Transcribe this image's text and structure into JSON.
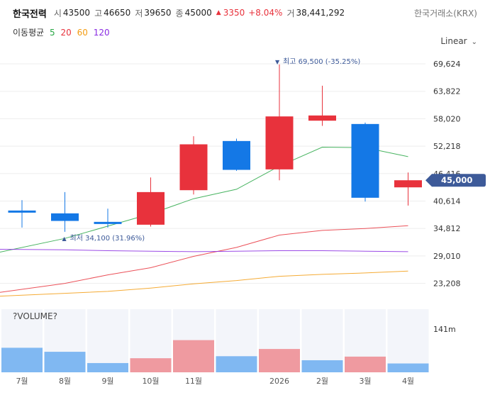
{
  "header": {
    "name": "한국전력",
    "open_label": "시",
    "open": "43500",
    "high_label": "고",
    "high": "46650",
    "low_label": "저",
    "low": "39650",
    "close_label": "종",
    "close": "45000",
    "change_arrow": "▲",
    "change": "3350",
    "change_pct": "+8.04%",
    "volume_label": "거",
    "volume": "38,441,292",
    "exchange": "한국거래소(KRX)"
  },
  "ma_legend": {
    "label": "이동평균",
    "periods": [
      "5",
      "20",
      "60",
      "120"
    ]
  },
  "scale": {
    "label": "Linear",
    "chevron_icon": "chevron-down-icon"
  },
  "colors": {
    "up": "#e8323c",
    "down": "#1478e6",
    "ma5": "#28a745",
    "ma20": "#e8323c",
    "ma60": "#f39c12",
    "ma120": "#8a2be2",
    "price_tag_bg": "#3d5a99"
  },
  "chart_data": {
    "type": "candlestick",
    "title": "한국전력",
    "y_scale": "linear",
    "ylim": [
      21000,
      74000
    ],
    "y_ticks": [
      "69,624",
      "63,822",
      "58,020",
      "52,218",
      "46,416",
      "40,614",
      "34,812",
      "29,010",
      "23,208"
    ],
    "y_tick_values": [
      69624,
      63822,
      58020,
      52218,
      46416,
      40614,
      34812,
      29010,
      23208
    ],
    "x_labels": [
      "7월",
      "8월",
      "9월",
      "10월",
      "11월",
      "2026",
      "2월",
      "3월",
      "4월"
    ],
    "candles": [
      {
        "open": 38600,
        "high": 40800,
        "low": 35000,
        "close": 38300
      },
      {
        "open": 38000,
        "high": 42500,
        "low": 34100,
        "close": 36400
      },
      {
        "open": 36200,
        "high": 39000,
        "low": 35000,
        "close": 35800
      },
      {
        "open": 35600,
        "high": 45600,
        "low": 35200,
        "close": 42500
      },
      {
        "open": 42900,
        "high": 54300,
        "low": 42000,
        "close": 52600
      },
      {
        "open": 53300,
        "high": 53800,
        "low": 47000,
        "close": 47200
      },
      {
        "open": 47300,
        "high": 69500,
        "low": 45000,
        "close": 58500
      },
      {
        "open": 57600,
        "high": 65000,
        "low": 56500,
        "close": 58700
      },
      {
        "open": 56900,
        "high": 57200,
        "low": 40500,
        "close": 41300
      },
      {
        "open": 43500,
        "high": 46650,
        "low": 39650,
        "close": 45000
      }
    ],
    "ma": [
      {
        "name": "5",
        "values": [
          29800,
          32700,
          35300,
          37900,
          41100,
          43100,
          48000,
          52000,
          51900,
          50000
        ]
      },
      {
        "name": "20",
        "values": [
          21300,
          23200,
          25000,
          26500,
          28900,
          30800,
          33400,
          34400,
          34800,
          35400
        ]
      },
      {
        "name": "60",
        "values": [
          20500,
          21100,
          21500,
          22200,
          23100,
          23800,
          24700,
          25100,
          25400,
          25800
        ]
      },
      {
        "name": "120",
        "values": [
          30400,
          30300,
          30100,
          30000,
          29900,
          30000,
          30100,
          30100,
          30000,
          29900
        ]
      }
    ],
    "volume_title": "?VOLUME?",
    "volume_scale_label": "141m",
    "volume_max": 141,
    "volumes": [
      {
        "value": 61,
        "dir": "down"
      },
      {
        "value": 51,
        "dir": "down"
      },
      {
        "value": 23,
        "dir": "down"
      },
      {
        "value": 35,
        "dir": "up"
      },
      {
        "value": 80,
        "dir": "up"
      },
      {
        "value": 40,
        "dir": "down"
      },
      {
        "value": 58,
        "dir": "up"
      },
      {
        "value": 30,
        "dir": "down"
      },
      {
        "value": 39,
        "dir": "up"
      },
      {
        "value": 22,
        "dir": "down"
      }
    ],
    "annotations": {
      "high_label": "최고",
      "high_value": "69,500",
      "high_pct": "(-35.25%)",
      "low_label": "최저",
      "low_value": "34,100",
      "low_pct": "(31.96%)",
      "current_price": "45,000"
    }
  }
}
